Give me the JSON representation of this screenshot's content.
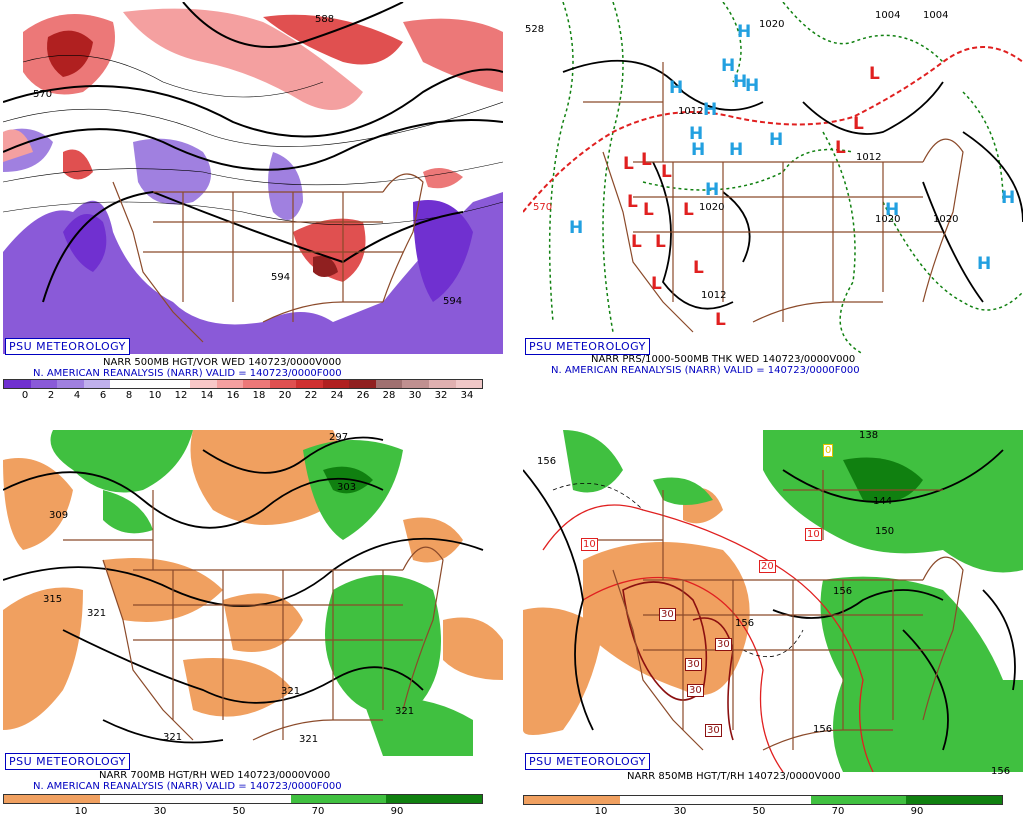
{
  "panels": [
    {
      "credit": "PSU METEOROLOGY",
      "line1": "NARR 500MB HGT/VOR WED 140723/0000V000",
      "line2": "N. AMERICAN REANALYSIS (NARR) VALID = 140723/0000F000",
      "colorbar_ticks": [
        "0",
        "2",
        "4",
        "6",
        "8",
        "10",
        "12",
        "14",
        "16",
        "18",
        "20",
        "22",
        "24",
        "26",
        "28",
        "30",
        "32",
        "34"
      ],
      "contour_labels": [
        "570",
        "594",
        "594",
        "588"
      ]
    },
    {
      "credit": "PSU METEOROLOGY",
      "line1": "NARR PRS/1000-500MB THK WED 140723/0000V000",
      "line2": "N. AMERICAN REANALYSIS (NARR) VALID = 140723/0000F000",
      "contour_labels": [
        "1020",
        "1012",
        "1012",
        "1012",
        "1020",
        "1020",
        "1020",
        "1004",
        "1004",
        "528",
        "570"
      ]
    },
    {
      "credit": "PSU METEOROLOGY",
      "line1": "NARR 700MB HGT/RH WED 140723/0000V000",
      "line2": "N. AMERICAN REANALYSIS (NARR) VALID = 140723/0000F000",
      "colorbar_ticks": [
        "10",
        "30",
        "50",
        "70",
        "90"
      ],
      "contour_labels": [
        "309",
        "315",
        "321",
        "321",
        "321",
        "297",
        "303",
        "321",
        "321"
      ]
    },
    {
      "credit": "PSU METEOROLOGY",
      "line1": "NARR 850MB HGT/T/RH 140723/0000V000",
      "colorbar_ticks": [
        "10",
        "30",
        "50",
        "70",
        "90"
      ],
      "contour_labels": [
        "156",
        "156",
        "156",
        "156",
        "144",
        "150",
        "156",
        "138"
      ],
      "temp_labels": [
        "10",
        "10",
        "20",
        "30",
        "30",
        "30",
        "30",
        "30",
        "0"
      ]
    }
  ],
  "colors": {
    "vor_scale": [
      "#7030d0",
      "#8a5ad8",
      "#a080e0",
      "#c0b0ec",
      "#ffffff",
      "#ffffff",
      "#ffffff",
      "#f8c8c8",
      "#f4a0a0",
      "#ec7878",
      "#e05050",
      "#d03030",
      "#b02020",
      "#902020",
      "#a07070",
      "#c09090",
      "#e0b0b0",
      "#f0c8c8"
    ],
    "rh_scale": [
      "#f0a060",
      "#ffffff",
      "#ffffff",
      "#40c040",
      "#108010"
    ],
    "geography": "#8b4a2a",
    "credit": "#0000c0"
  },
  "pressure_centers": {
    "highs": 18,
    "lows": 16,
    "high_letter": "H",
    "low_letter": "L"
  }
}
